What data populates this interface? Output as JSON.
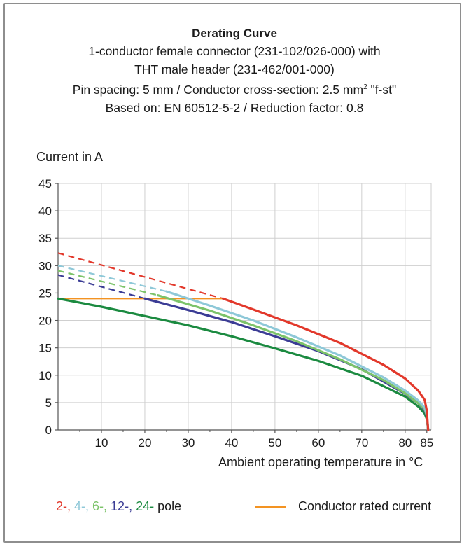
{
  "title": "Derating Curve",
  "subtitle_lines": [
    "1-conductor female connector (231-102/026-000) with",
    "THT male header (231-462/001-000)",
    "Pin spacing: 5 mm / Conductor cross-section: 2.5 mm",
    "Based on: EN 60512-5-2 / Reduction factor: 0.8"
  ],
  "subtitle_sup": "2",
  "subtitle_tail": " \"f-st\"",
  "colors": {
    "pole_2": "#e2382b",
    "pole_4": "#8ec8d8",
    "pole_6": "#7cc36a",
    "pole_12": "#3b3c95",
    "pole_24": "#1b8a40",
    "rated": "#f39322",
    "grid": "#cfcfcf",
    "axis": "#555555"
  },
  "legend": {
    "poles": [
      "2-",
      "4-",
      "6-",
      "12-",
      "24-"
    ],
    "pole_suffix": "pole",
    "rated_label": "Conductor rated current"
  },
  "chart_data": {
    "type": "line",
    "title": "Derating Curve",
    "xlabel": "Ambient operating temperature in °C",
    "ylabel": "Current in A",
    "xlim": [
      0,
      86
    ],
    "ylim": [
      0,
      45
    ],
    "xticks": [
      10,
      20,
      30,
      40,
      50,
      60,
      70,
      80,
      85
    ],
    "yticks": [
      0,
      5,
      10,
      15,
      20,
      25,
      30,
      35,
      40,
      45
    ],
    "grid": true,
    "rated_current": {
      "name": "Conductor rated current",
      "x": [
        0,
        38
      ],
      "y": [
        24,
        24
      ]
    },
    "series": [
      {
        "name": "2-",
        "dashed": {
          "x": [
            0,
            38
          ],
          "y": [
            32.3,
            24
          ]
        },
        "x": [
          38,
          45,
          55,
          65,
          75,
          80,
          83,
          84.5,
          85,
          85.2,
          85.3
        ],
        "y": [
          24,
          22,
          19.1,
          15.9,
          11.9,
          9.4,
          7.2,
          5.5,
          3.5,
          1.2,
          0
        ]
      },
      {
        "name": "4-",
        "dashed": {
          "x": [
            0,
            25
          ],
          "y": [
            30,
            25.3
          ]
        },
        "x": [
          25,
          35,
          45,
          55,
          65,
          75,
          80,
          83,
          84.5,
          85,
          85.2,
          85.3
        ],
        "y": [
          25.3,
          22.7,
          20,
          16.9,
          13.6,
          9.6,
          7.2,
          5.4,
          4.1,
          2.8,
          1.1,
          0
        ]
      },
      {
        "name": "6-",
        "dashed": {
          "x": [
            0,
            23
          ],
          "y": [
            29.1,
            24.6
          ]
        },
        "x": [
          23,
          35,
          45,
          55,
          65,
          75,
          80,
          83,
          84.5,
          85,
          85.2,
          85.3
        ],
        "y": [
          24.6,
          21.8,
          19.1,
          16.2,
          12.9,
          9.1,
          6.7,
          4.9,
          3.8,
          2.6,
          1,
          0
        ]
      },
      {
        "name": "12-",
        "dashed": {
          "x": [
            0,
            20
          ],
          "y": [
            28.3,
            24
          ]
        },
        "x": [
          20,
          30,
          40,
          50,
          60,
          70,
          80,
          83,
          84.5,
          85,
          85.2,
          85.3
        ],
        "y": [
          24,
          21.9,
          19.7,
          17.1,
          14.4,
          11.1,
          6.6,
          4.9,
          3.6,
          2.4,
          1,
          0
        ]
      },
      {
        "name": "24-",
        "dashed": null,
        "x": [
          0,
          10,
          20,
          30,
          40,
          50,
          60,
          70,
          80,
          83,
          84.5,
          85,
          85.2,
          85.3
        ],
        "y": [
          24,
          22.5,
          20.8,
          19.1,
          17.1,
          14.9,
          12.6,
          9.9,
          6.1,
          4.3,
          3,
          2,
          0.8,
          0
        ]
      }
    ]
  }
}
